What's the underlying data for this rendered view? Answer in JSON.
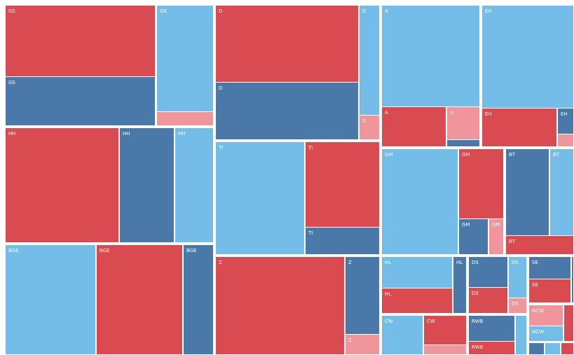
{
  "tiles": [
    "GS",
    "GS",
    "GS",
    "HH",
    "HH",
    "HH",
    "BGE",
    "BGE",
    "BGE",
    "D",
    "D",
    "D",
    "D",
    "TI",
    "TI",
    "TI",
    "Z",
    "Z",
    "Z",
    "A",
    "A",
    "A",
    "EH",
    "EH",
    "EH",
    "GM",
    "GM",
    "GM",
    "GM",
    "BT",
    "BT",
    "BT",
    "HL",
    "HL",
    "HL",
    "DS",
    "DS",
    "DS",
    "DS",
    "SE",
    "SE",
    "NCW",
    "NCW",
    "CW",
    "CW",
    "RWB",
    "RWB"
  ]
}
